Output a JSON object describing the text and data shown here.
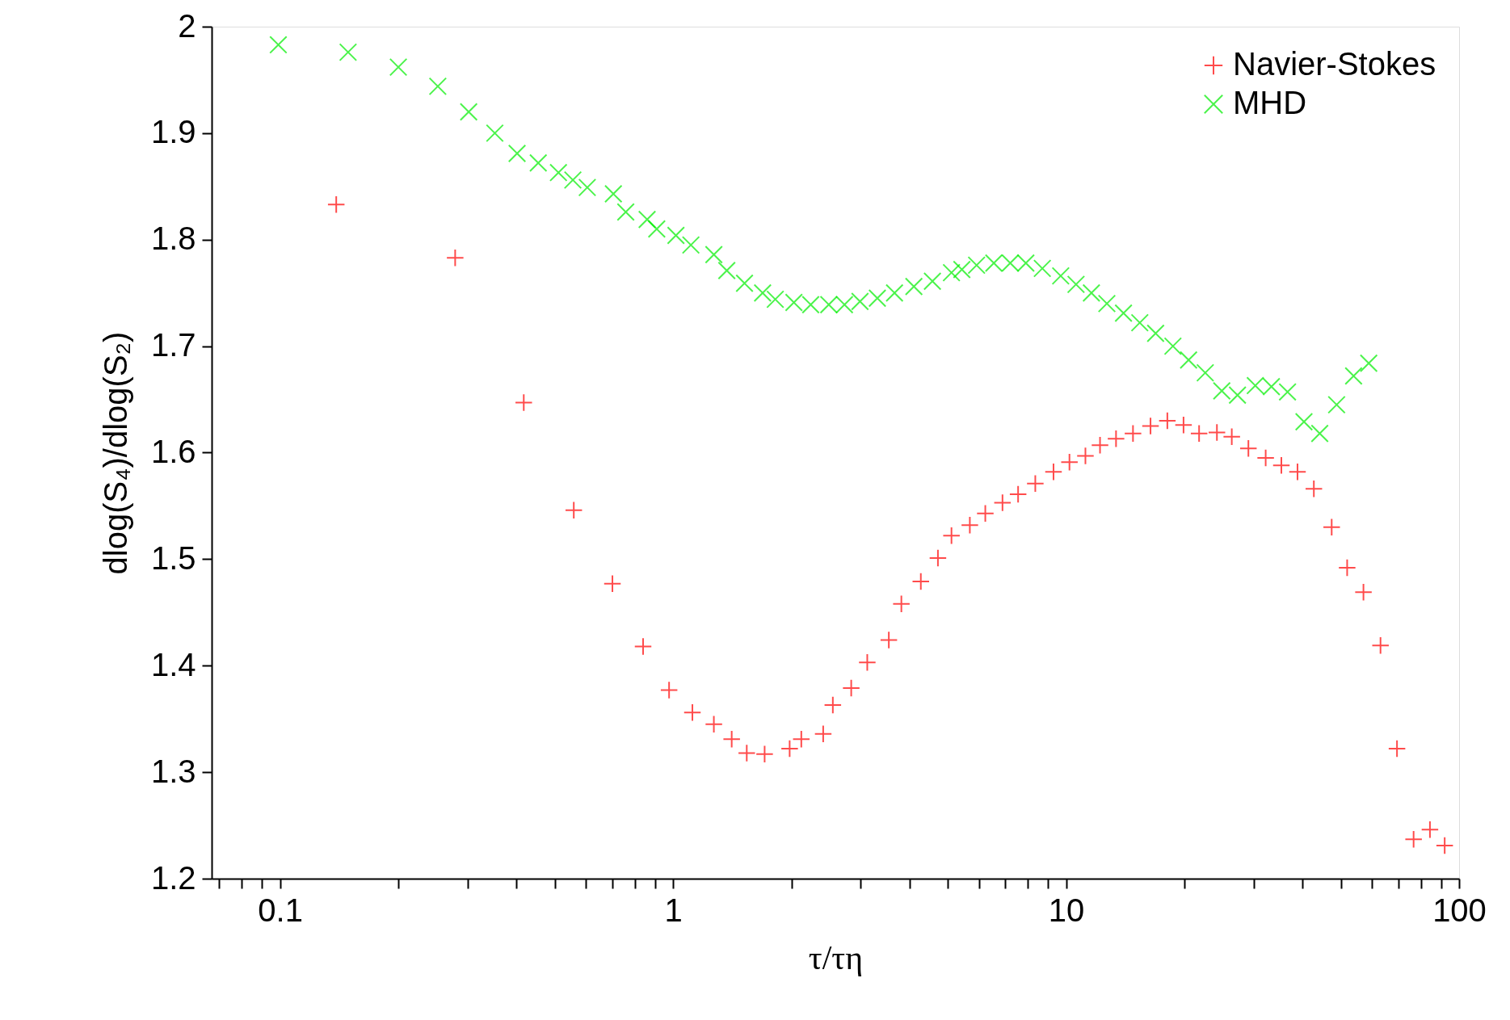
{
  "chart_data": {
    "type": "scatter",
    "xlabel": "τ/τη",
    "ylabel": "dlog(S₄)/dlog(S₂)",
    "log": "x",
    "grid": false,
    "legend": "top right",
    "xlim": [
      0.067,
      100
    ],
    "ylim": [
      1.2,
      2
    ],
    "xticks": [
      {
        "value": 0.07,
        "label": null
      },
      {
        "value": 0.08,
        "label": null
      },
      {
        "value": 0.09,
        "label": null
      },
      0.1,
      {
        "value": 0.2,
        "label": null
      },
      {
        "value": 0.3,
        "label": null
      },
      {
        "value": 0.4,
        "label": null
      },
      {
        "value": 0.5,
        "label": null
      },
      {
        "value": 0.6,
        "label": null
      },
      {
        "value": 0.7,
        "label": null
      },
      {
        "value": 0.8,
        "label": null
      },
      {
        "value": 0.9,
        "label": null
      },
      1,
      {
        "value": 2,
        "label": null
      },
      {
        "value": 3,
        "label": null
      },
      {
        "value": 4,
        "label": null
      },
      {
        "value": 5,
        "label": null
      },
      {
        "value": 6,
        "label": null
      },
      {
        "value": 7,
        "label": null
      },
      {
        "value": 8,
        "label": null
      },
      {
        "value": 9,
        "label": null
      },
      10,
      {
        "value": 20,
        "label": null
      },
      {
        "value": 30,
        "label": null
      },
      {
        "value": 40,
        "label": null
      },
      {
        "value": 50,
        "label": null
      },
      {
        "value": 60,
        "label": null
      },
      {
        "value": 70,
        "label": null
      },
      {
        "value": 80,
        "label": null
      },
      {
        "value": 90,
        "label": null
      },
      100
    ],
    "yticks": [
      1.2,
      1.3,
      1.4,
      1.5,
      1.6,
      1.7,
      1.8,
      1.9,
      2
    ],
    "series": [
      {
        "name": "Navier-Stokes",
        "color": "#ff0000",
        "marker": "cross",
        "x": [
          0.139,
          0.279,
          0.417,
          0.559,
          0.701,
          0.839,
          0.977,
          1.12,
          1.27,
          1.41,
          1.54,
          1.71,
          1.98,
          2.12,
          2.41,
          2.55,
          2.84,
          3.12,
          3.54,
          3.81,
          4.27,
          4.72,
          5.11,
          5.69,
          6.23,
          6.89,
          7.55,
          8.35,
          9.29,
          10.2,
          11.2,
          12.2,
          13.4,
          14.8,
          16.4,
          18.1,
          19.9,
          21.8,
          24.2,
          26.4,
          29.1,
          32.2,
          35.3,
          38.8,
          42.7,
          47.4,
          51.9,
          57.1,
          63.1,
          69.5,
          76.6,
          84.3,
          91.9
        ],
        "values": [
          1.833,
          1.783,
          1.647,
          1.546,
          1.477,
          1.418,
          1.377,
          1.356,
          1.345,
          1.331,
          1.318,
          1.317,
          1.322,
          1.331,
          1.336,
          1.363,
          1.379,
          1.403,
          1.424,
          1.458,
          1.479,
          1.501,
          1.522,
          1.532,
          1.543,
          1.553,
          1.561,
          1.571,
          1.582,
          1.591,
          1.597,
          1.607,
          1.613,
          1.618,
          1.625,
          1.63,
          1.626,
          1.618,
          1.619,
          1.615,
          1.604,
          1.595,
          1.588,
          1.582,
          1.566,
          1.53,
          1.492,
          1.469,
          1.419,
          1.322,
          1.237,
          1.246,
          1.231
        ]
      },
      {
        "name": "MHD",
        "color": "#00ee00",
        "marker": "x",
        "x": [
          0.099,
          0.149,
          0.2,
          0.252,
          0.302,
          0.352,
          0.401,
          0.454,
          0.511,
          0.556,
          0.605,
          0.705,
          0.758,
          0.859,
          0.909,
          1.017,
          1.11,
          1.27,
          1.37,
          1.52,
          1.69,
          1.82,
          2.03,
          2.24,
          2.49,
          2.73,
          2.99,
          3.31,
          3.66,
          4.1,
          4.57,
          5.11,
          5.43,
          5.92,
          6.55,
          7.21,
          7.9,
          8.7,
          9.69,
          10.6,
          11.6,
          12.7,
          14.0,
          15.4,
          16.9,
          18.7,
          20.5,
          22.6,
          24.9,
          27.3,
          30.3,
          33.3,
          36.6,
          40.3,
          44.2,
          48.8,
          53.9,
          58.9
        ],
        "values": [
          1.983,
          1.976,
          1.962,
          1.944,
          1.92,
          1.9,
          1.881,
          1.872,
          1.863,
          1.856,
          1.849,
          1.843,
          1.826,
          1.819,
          1.81,
          1.804,
          1.795,
          1.786,
          1.771,
          1.759,
          1.75,
          1.744,
          1.741,
          1.739,
          1.739,
          1.739,
          1.742,
          1.745,
          1.75,
          1.756,
          1.761,
          1.769,
          1.772,
          1.776,
          1.778,
          1.778,
          1.778,
          1.773,
          1.766,
          1.758,
          1.75,
          1.74,
          1.731,
          1.722,
          1.712,
          1.7,
          1.687,
          1.675,
          1.658,
          1.654,
          1.663,
          1.662,
          1.657,
          1.629,
          1.618,
          1.645,
          1.672,
          1.684
        ]
      }
    ]
  }
}
